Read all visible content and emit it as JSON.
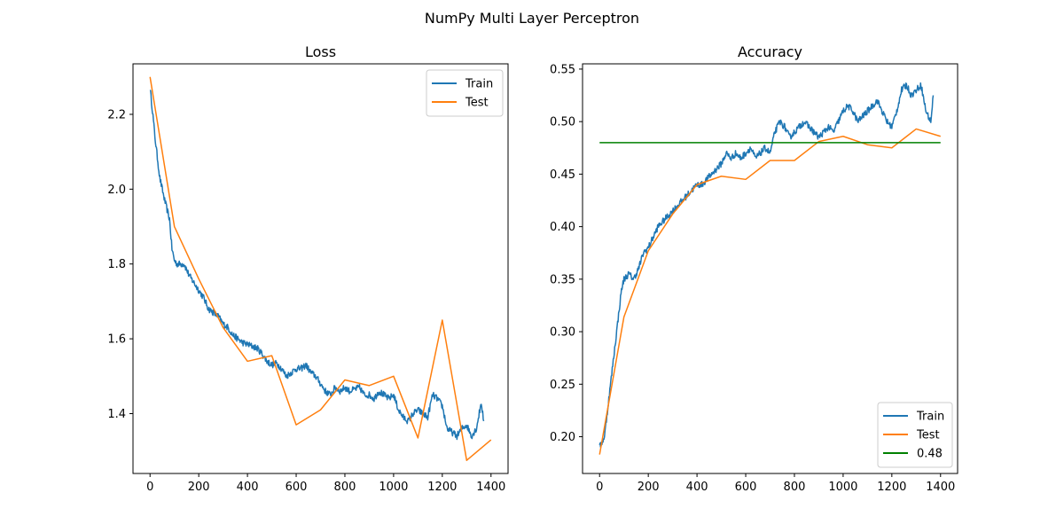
{
  "figure": {
    "suptitle": "NumPy Multi Layer Perceptron"
  },
  "chart_data": [
    {
      "type": "line",
      "title": "Loss",
      "xlabel": "",
      "ylabel": "",
      "xlim": [
        -70,
        1470
      ],
      "ylim": [
        1.24,
        2.335
      ],
      "xticks": [
        0,
        200,
        400,
        600,
        800,
        1000,
        1200,
        1400
      ],
      "yticks": [
        1.4,
        1.6,
        1.8,
        2.0,
        2.2
      ],
      "ytick_labels": [
        "1.4",
        "1.6",
        "1.8",
        "2.0",
        "2.2"
      ],
      "legend_loc": "upper right",
      "grid": false,
      "series": [
        {
          "name": "Train",
          "color": "#1f77b4",
          "noisy": true,
          "x": [
            0,
            10,
            20,
            40,
            60,
            80,
            90,
            100,
            110,
            140,
            160,
            180,
            200,
            220,
            240,
            260,
            280,
            300,
            320,
            340,
            360,
            380,
            400,
            420,
            440,
            460,
            480,
            500,
            520,
            540,
            560,
            580,
            600,
            620,
            640,
            660,
            680,
            700,
            720,
            740,
            760,
            780,
            800,
            820,
            840,
            860,
            880,
            900,
            920,
            940,
            960,
            980,
            1000,
            1020,
            1040,
            1060,
            1080,
            1100,
            1120,
            1140,
            1160,
            1180,
            1200,
            1220,
            1240,
            1260,
            1280,
            1300,
            1320,
            1340,
            1360,
            1370
          ],
          "values": [
            2.27,
            2.21,
            2.14,
            2.03,
            1.97,
            1.92,
            1.84,
            1.81,
            1.8,
            1.8,
            1.77,
            1.75,
            1.73,
            1.71,
            1.68,
            1.67,
            1.66,
            1.64,
            1.63,
            1.61,
            1.6,
            1.59,
            1.585,
            1.58,
            1.575,
            1.56,
            1.54,
            1.53,
            1.535,
            1.52,
            1.5,
            1.51,
            1.52,
            1.52,
            1.53,
            1.51,
            1.5,
            1.48,
            1.46,
            1.45,
            1.47,
            1.46,
            1.47,
            1.46,
            1.465,
            1.47,
            1.45,
            1.45,
            1.44,
            1.46,
            1.45,
            1.44,
            1.45,
            1.41,
            1.39,
            1.38,
            1.4,
            1.41,
            1.4,
            1.39,
            1.45,
            1.44,
            1.42,
            1.36,
            1.35,
            1.34,
            1.36,
            1.37,
            1.34,
            1.36,
            1.43,
            1.38
          ]
        },
        {
          "name": "Test",
          "color": "#ff7f0e",
          "noisy": false,
          "x": [
            0,
            100,
            200,
            300,
            400,
            500,
            600,
            700,
            800,
            900,
            1000,
            1100,
            1200,
            1300,
            1400
          ],
          "values": [
            2.3,
            1.9,
            1.76,
            1.63,
            1.54,
            1.555,
            1.37,
            1.41,
            1.49,
            1.475,
            1.5,
            1.335,
            1.65,
            1.275,
            1.33
          ]
        }
      ]
    },
    {
      "type": "line",
      "title": "Accuracy",
      "xlabel": "",
      "ylabel": "",
      "xlim": [
        -70,
        1470
      ],
      "ylim": [
        0.165,
        0.555
      ],
      "xticks": [
        0,
        200,
        400,
        600,
        800,
        1000,
        1200,
        1400
      ],
      "yticks": [
        0.2,
        0.25,
        0.3,
        0.35,
        0.4,
        0.45,
        0.5,
        0.55
      ],
      "ytick_labels": [
        "0.20",
        "0.25",
        "0.30",
        "0.35",
        "0.40",
        "0.45",
        "0.50",
        "0.55"
      ],
      "legend_loc": "lower right",
      "grid": false,
      "series": [
        {
          "name": "Train",
          "color": "#1f77b4",
          "noisy": true,
          "x": [
            0,
            10,
            20,
            30,
            40,
            50,
            60,
            70,
            80,
            90,
            100,
            120,
            140,
            160,
            180,
            200,
            220,
            240,
            260,
            280,
            300,
            320,
            340,
            360,
            380,
            400,
            420,
            440,
            460,
            480,
            500,
            520,
            540,
            560,
            580,
            600,
            620,
            640,
            660,
            680,
            700,
            720,
            740,
            760,
            780,
            800,
            820,
            840,
            860,
            880,
            900,
            920,
            940,
            960,
            980,
            1000,
            1020,
            1040,
            1060,
            1080,
            1100,
            1120,
            1140,
            1160,
            1180,
            1200,
            1220,
            1240,
            1260,
            1280,
            1300,
            1320,
            1340,
            1360,
            1370
          ],
          "values": [
            0.19,
            0.195,
            0.2,
            0.22,
            0.24,
            0.26,
            0.28,
            0.3,
            0.32,
            0.34,
            0.35,
            0.355,
            0.35,
            0.36,
            0.375,
            0.38,
            0.39,
            0.4,
            0.405,
            0.41,
            0.415,
            0.42,
            0.425,
            0.43,
            0.435,
            0.44,
            0.44,
            0.445,
            0.45,
            0.455,
            0.46,
            0.47,
            0.465,
            0.47,
            0.465,
            0.47,
            0.475,
            0.465,
            0.47,
            0.475,
            0.47,
            0.49,
            0.5,
            0.495,
            0.485,
            0.49,
            0.495,
            0.5,
            0.495,
            0.49,
            0.485,
            0.49,
            0.495,
            0.49,
            0.5,
            0.51,
            0.515,
            0.51,
            0.5,
            0.505,
            0.51,
            0.515,
            0.52,
            0.51,
            0.5,
            0.495,
            0.51,
            0.53,
            0.535,
            0.525,
            0.53,
            0.535,
            0.51,
            0.5,
            0.525
          ]
        },
        {
          "name": "Test",
          "color": "#ff7f0e",
          "noisy": false,
          "x": [
            0,
            100,
            200,
            300,
            400,
            500,
            600,
            700,
            800,
            900,
            1000,
            1100,
            1200,
            1300,
            1400
          ],
          "values": [
            0.183,
            0.314,
            0.377,
            0.412,
            0.44,
            0.448,
            0.445,
            0.463,
            0.463,
            0.481,
            0.486,
            0.478,
            0.475,
            0.493,
            0.486
          ]
        },
        {
          "name": "0.48",
          "color": "#008000",
          "noisy": false,
          "x": [
            0,
            1400
          ],
          "values": [
            0.48,
            0.48
          ]
        }
      ]
    }
  ]
}
